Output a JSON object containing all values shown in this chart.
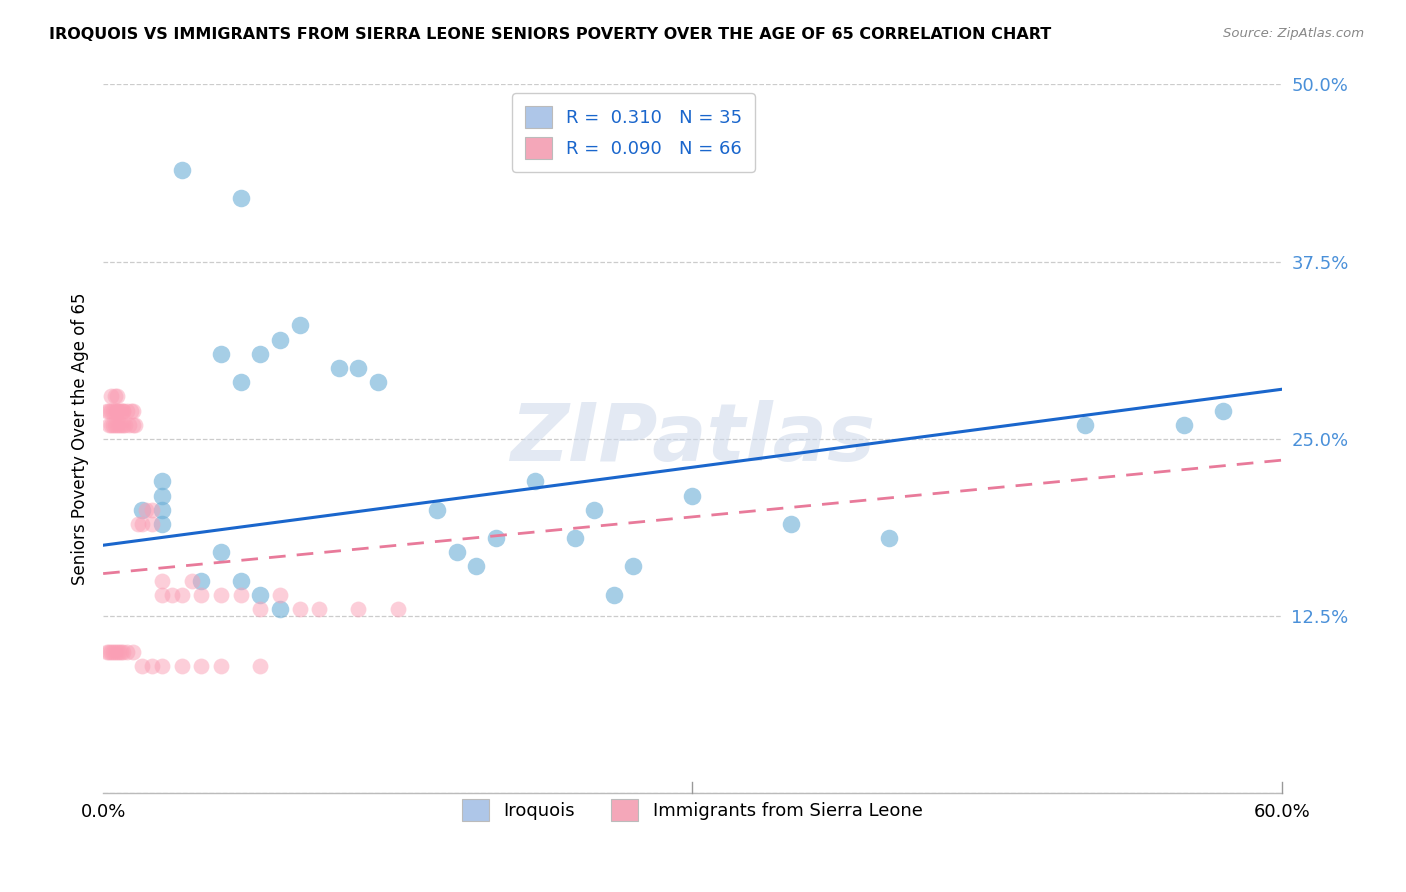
{
  "title": "IROQUOIS VS IMMIGRANTS FROM SIERRA LEONE SENIORS POVERTY OVER THE AGE OF 65 CORRELATION CHART",
  "source": "Source: ZipAtlas.com",
  "ylabel": "Seniors Poverty Over the Age of 65",
  "xlim": [
    0.0,
    0.6
  ],
  "ylim": [
    0.0,
    0.5
  ],
  "yticks": [
    0.0,
    0.125,
    0.25,
    0.375,
    0.5
  ],
  "ytick_labels": [
    "",
    "12.5%",
    "25.0%",
    "37.5%",
    "50.0%"
  ],
  "xticks": [
    0.0,
    0.1,
    0.2,
    0.3,
    0.4,
    0.5,
    0.6
  ],
  "xtick_labels": [
    "0.0%",
    "",
    "",
    "",
    "",
    "",
    "60.0%"
  ],
  "legend_label1": "R =  0.310   N = 35",
  "legend_label2": "R =  0.090   N = 66",
  "legend_color1": "#aec6e8",
  "legend_color2": "#f4a7b9",
  "watermark": "ZIPatlas",
  "blue_color": "#6baed6",
  "pink_color": "#fa9fb5",
  "line_blue": "#1a66cc",
  "line_pink": "#e87a9a",
  "iroquois_x": [
    0.04,
    0.07,
    0.1,
    0.13,
    0.09,
    0.12,
    0.14,
    0.06,
    0.07,
    0.08,
    0.02,
    0.03,
    0.03,
    0.03,
    0.03,
    0.17,
    0.18,
    0.19,
    0.2,
    0.22,
    0.25,
    0.24,
    0.26,
    0.27,
    0.3,
    0.35,
    0.4,
    0.5,
    0.55,
    0.57,
    0.05,
    0.06,
    0.07,
    0.08,
    0.09
  ],
  "iroquois_y": [
    0.44,
    0.42,
    0.33,
    0.3,
    0.32,
    0.3,
    0.29,
    0.31,
    0.29,
    0.31,
    0.2,
    0.2,
    0.19,
    0.21,
    0.22,
    0.2,
    0.17,
    0.16,
    0.18,
    0.22,
    0.2,
    0.18,
    0.14,
    0.16,
    0.21,
    0.19,
    0.18,
    0.26,
    0.26,
    0.27,
    0.15,
    0.17,
    0.15,
    0.14,
    0.13
  ],
  "sierra_leone_x": [
    0.002,
    0.003,
    0.003,
    0.004,
    0.004,
    0.004,
    0.005,
    0.005,
    0.006,
    0.006,
    0.006,
    0.007,
    0.007,
    0.007,
    0.007,
    0.008,
    0.008,
    0.009,
    0.009,
    0.01,
    0.01,
    0.01,
    0.011,
    0.012,
    0.013,
    0.014,
    0.015,
    0.015,
    0.016,
    0.018,
    0.02,
    0.022,
    0.025,
    0.025,
    0.03,
    0.03,
    0.035,
    0.04,
    0.045,
    0.05,
    0.06,
    0.07,
    0.08,
    0.09,
    0.1,
    0.11,
    0.13,
    0.15,
    0.002,
    0.003,
    0.004,
    0.005,
    0.006,
    0.007,
    0.008,
    0.009,
    0.01,
    0.012,
    0.015,
    0.02,
    0.025,
    0.03,
    0.04,
    0.05,
    0.06,
    0.08
  ],
  "sierra_leone_y": [
    0.27,
    0.27,
    0.26,
    0.27,
    0.28,
    0.26,
    0.27,
    0.26,
    0.27,
    0.28,
    0.26,
    0.27,
    0.26,
    0.27,
    0.28,
    0.27,
    0.26,
    0.27,
    0.26,
    0.27,
    0.26,
    0.27,
    0.26,
    0.27,
    0.26,
    0.27,
    0.26,
    0.27,
    0.26,
    0.19,
    0.19,
    0.2,
    0.19,
    0.2,
    0.14,
    0.15,
    0.14,
    0.14,
    0.15,
    0.14,
    0.14,
    0.14,
    0.13,
    0.14,
    0.13,
    0.13,
    0.13,
    0.13,
    0.1,
    0.1,
    0.1,
    0.1,
    0.1,
    0.1,
    0.1,
    0.1,
    0.1,
    0.1,
    0.1,
    0.09,
    0.09,
    0.09,
    0.09,
    0.09,
    0.09,
    0.09
  ]
}
